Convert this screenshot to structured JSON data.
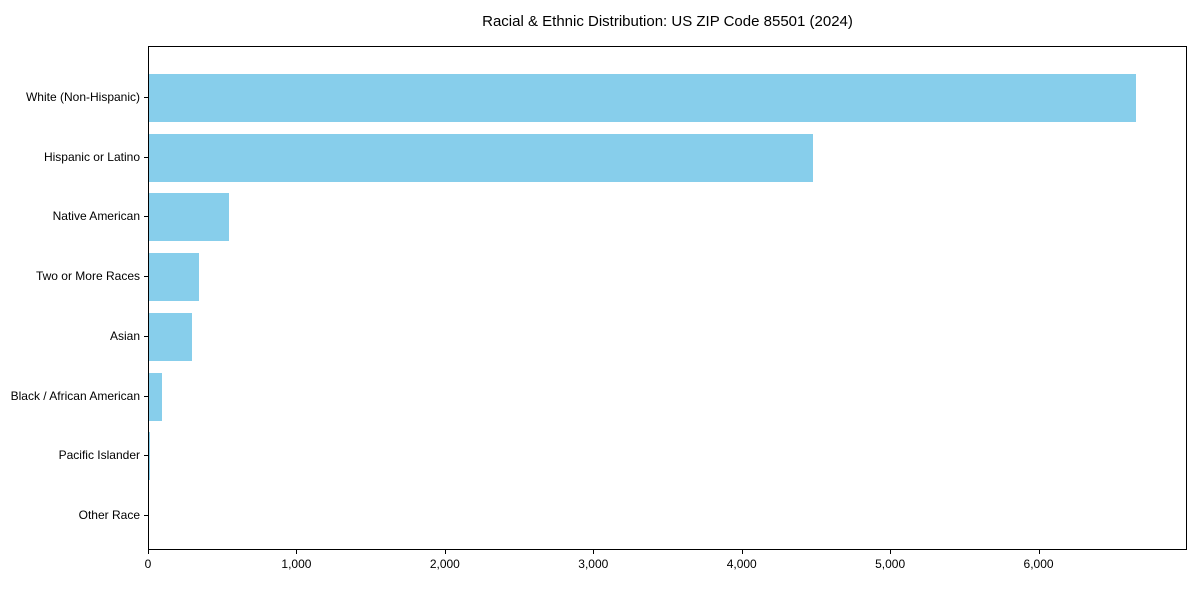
{
  "chart_data": {
    "type": "bar",
    "orientation": "horizontal",
    "title": "Racial & Ethnic Distribution: US ZIP Code 85501 (2024)",
    "categories": [
      "White (Non-Hispanic)",
      "Hispanic or Latino",
      "Native American",
      "Two or More Races",
      "Asian",
      "Black / African American",
      "Pacific Islander",
      "Other Race"
    ],
    "values": [
      6660,
      4480,
      540,
      340,
      290,
      90,
      10,
      0
    ],
    "xlabel": "",
    "ylabel": "",
    "xlim": [
      0,
      7000
    ],
    "xticks": [
      0,
      1000,
      2000,
      3000,
      4000,
      5000,
      6000
    ],
    "xtick_labels": [
      "0",
      "1,000",
      "2,000",
      "3,000",
      "4,000",
      "5,000",
      "6,000"
    ],
    "bar_color": "#87CEEB",
    "frame_color": "#000000",
    "background_color": "#ffffff",
    "grid": false,
    "legend_position": "none"
  }
}
